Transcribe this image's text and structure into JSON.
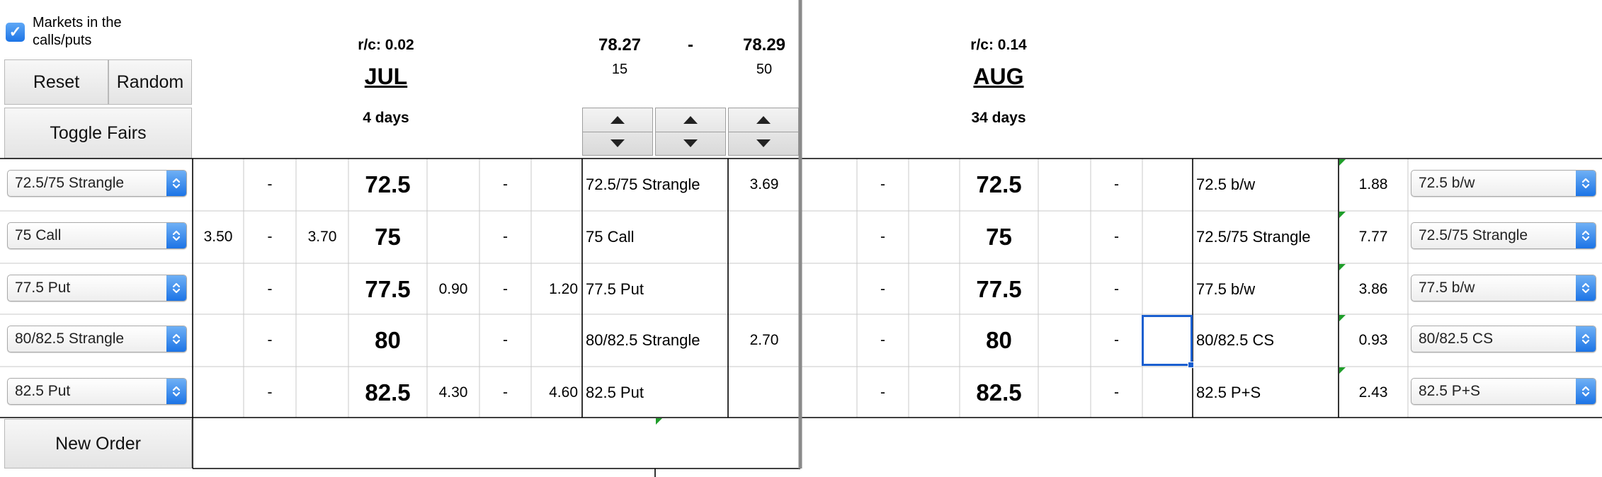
{
  "controls": {
    "markets_checkbox_label": "Markets in the calls/puts",
    "markets_checked": true,
    "reset_label": "Reset",
    "random_label": "Random",
    "toggle_fairs_label": "Toggle Fairs",
    "new_order_label": "New Order"
  },
  "jul": {
    "rc": "r/c: 0.02",
    "month": "JUL",
    "days": "4 days",
    "bid_price": "78.27",
    "dash": "-",
    "ask_price": "78.29",
    "bid_qty": "15",
    "ask_qty": "50"
  },
  "aug": {
    "rc": "r/c: 0.14",
    "month": "AUG",
    "days": "34 days"
  },
  "rows": [
    {
      "select": "72.5/75 Strangle",
      "c_bid": "",
      "c_dash": "-",
      "c_ask": "",
      "strike": "72.5",
      "p_bid": "",
      "p_dash": "-",
      "p_ask": "",
      "jul_label": "72.5/75 Strangle",
      "jul_value": "3.69",
      "a_dash1": "-",
      "a_strike": "72.5",
      "a_dash2": "-",
      "aug_label": "72.5 b/w",
      "aug_value": "1.88",
      "aug_select": "72.5 b/w"
    },
    {
      "select": "75 Call",
      "c_bid": "3.50",
      "c_dash": "-",
      "c_ask": "3.70",
      "strike": "75",
      "p_bid": "",
      "p_dash": "-",
      "p_ask": "",
      "jul_label": "75 Call",
      "jul_value": "",
      "a_dash1": "-",
      "a_strike": "75",
      "a_dash2": "-",
      "aug_label": "72.5/75 Strangle",
      "aug_value": "7.77",
      "aug_select": "72.5/75 Strangle"
    },
    {
      "select": "77.5 Put",
      "c_bid": "",
      "c_dash": "-",
      "c_ask": "",
      "strike": "77.5",
      "p_bid": "0.90",
      "p_dash": "-",
      "p_ask": "1.20",
      "jul_label": "77.5 Put",
      "jul_value": "",
      "a_dash1": "-",
      "a_strike": "77.5",
      "a_dash2": "-",
      "aug_label": "77.5 b/w",
      "aug_value": "3.86",
      "aug_select": "77.5 b/w"
    },
    {
      "select": "80/82.5 Strangle",
      "c_bid": "",
      "c_dash": "-",
      "c_ask": "",
      "strike": "80",
      "p_bid": "",
      "p_dash": "-",
      "p_ask": "",
      "jul_label": "80/82.5 Strangle",
      "jul_value": "2.70",
      "a_dash1": "-",
      "a_strike": "80",
      "a_dash2": "-",
      "aug_label": "80/82.5 CS",
      "aug_value": "0.93",
      "aug_select": "80/82.5 CS"
    },
    {
      "select": "82.5 Put",
      "c_bid": "",
      "c_dash": "-",
      "c_ask": "",
      "strike": "82.5",
      "p_bid": "4.30",
      "p_dash": "-",
      "p_ask": "4.60",
      "jul_label": "82.5 Put",
      "jul_value": "",
      "a_dash1": "-",
      "a_strike": "82.5",
      "a_dash2": "-",
      "aug_label": "82.5 P+S",
      "aug_value": "2.43",
      "aug_select": "82.5 P+S"
    }
  ],
  "icons": {
    "checkbox": "checkmark-icon",
    "select_arrow": "updown-chevron-icon",
    "stepper_up": "triangle-up-icon",
    "stepper_down": "triangle-down-icon"
  },
  "colors": {
    "accent_blue": "#1c74e6",
    "selection_blue": "#1a5fd0",
    "comment_green": "#1f9d2a",
    "grid": "#c8c8c8",
    "heavy_border": "#000000"
  }
}
